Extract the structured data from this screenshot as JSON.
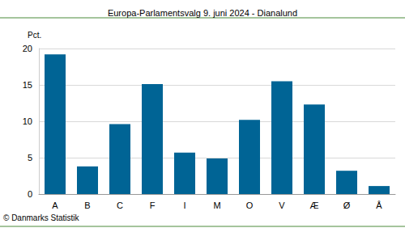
{
  "chart_data": {
    "type": "bar",
    "title": "Europa-Parlamentsvalg 9. juni 2024 - Dianalund",
    "y_label": "Pct.",
    "source": "© Danmarks Statistik",
    "categories": [
      "A",
      "B",
      "C",
      "F",
      "I",
      "M",
      "O",
      "V",
      "Æ",
      "Ø",
      "Å"
    ],
    "values": [
      19.2,
      3.8,
      9.6,
      15.1,
      5.7,
      4.9,
      10.2,
      15.5,
      12.3,
      3.2,
      1.1
    ],
    "color": "#006495",
    "ylim": [
      0,
      20
    ],
    "yticks": [
      0,
      5,
      10,
      15,
      20
    ],
    "grid": true
  }
}
